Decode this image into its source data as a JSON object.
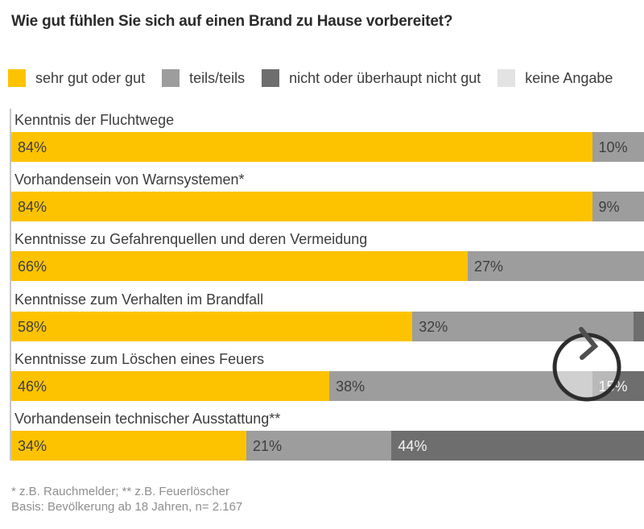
{
  "title": "Wie gut fühlen Sie sich auf einen Brand zu Hause vorbereitet?",
  "legend": {
    "items": [
      {
        "label": "sehr gut oder gut",
        "color": "#fdc300"
      },
      {
        "label": "teils/teils",
        "color": "#9d9d9d"
      },
      {
        "label": "nicht oder überhaupt nicht gut",
        "color": "#6e6e6e"
      },
      {
        "label": "keine Angabe",
        "color": "#e3e3e3"
      }
    ]
  },
  "chart_data": {
    "type": "bar",
    "stacked": true,
    "orientation": "horizontal",
    "unit": "%",
    "title": "Wie gut fühlen Sie sich auf einen Brand zu Hause vorbereitet?",
    "axis_note": "bars clipped at right image edge; baseline axis at left = 0%",
    "categories": [
      "Kenntnis der Fluchtwege",
      "Vorhandensein von Warnsystemen*",
      "Kenntnisse zu Gefahrenquellen und deren Vermeidung",
      "Kenntnisse zum Verhalten im Brandfall",
      "Kenntnisse zum Löschen eines Feuers",
      "Vorhandensein technischer Ausstattung**"
    ],
    "series": [
      {
        "name": "sehr gut oder gut",
        "color": "#fdc300",
        "value_text_color": "#3e3e3e",
        "values": [
          84,
          84,
          66,
          58,
          46,
          34
        ]
      },
      {
        "name": "teils/teils",
        "color": "#9d9d9d",
        "value_text_color": "#3e3e3e",
        "values": [
          10,
          9,
          27,
          32,
          38,
          21
        ]
      },
      {
        "name": "nicht oder überhaupt nicht gut",
        "color": "#6e6e6e",
        "value_text_color": "#f5f5f5",
        "values": [
          null,
          null,
          null,
          null,
          15,
          44
        ]
      },
      {
        "name": "keine Angabe",
        "color": "#e3e3e3",
        "value_text_color": "#3e3e3e",
        "values": [
          null,
          null,
          null,
          null,
          null,
          null
        ]
      }
    ],
    "rows": [
      {
        "label": "Kenntnis der Fluchtwege",
        "segments": [
          {
            "series": 0,
            "value": 84,
            "text": "84%"
          },
          {
            "series": 1,
            "value": 10,
            "text": "10%"
          }
        ]
      },
      {
        "label": "Vorhandensein von Warnsystemen*",
        "segments": [
          {
            "series": 0,
            "value": 84,
            "text": "84%"
          },
          {
            "series": 1,
            "value": 9,
            "text": "9%"
          }
        ]
      },
      {
        "label": "Kenntnisse zu Gefahrenquellen und deren Vermeidung",
        "segments": [
          {
            "series": 0,
            "value": 66,
            "text": "66%"
          },
          {
            "series": 1,
            "value": 27,
            "text": "27%"
          }
        ]
      },
      {
        "label": "Kenntnisse zum Verhalten im Brandfall",
        "segments": [
          {
            "series": 0,
            "value": 58,
            "text": "58%"
          },
          {
            "series": 1,
            "value": 32,
            "text": "32%"
          },
          {
            "series": 2,
            "value": null,
            "text": ""
          }
        ]
      },
      {
        "label": "Kenntnisse zum Löschen eines Feuers",
        "segments": [
          {
            "series": 0,
            "value": 46,
            "text": "46%"
          },
          {
            "series": 1,
            "value": 38,
            "text": "38%"
          },
          {
            "series": 2,
            "value": 15,
            "text": "15%"
          }
        ]
      },
      {
        "label": "Vorhandensein technischer Ausstattung**",
        "segments": [
          {
            "series": 0,
            "value": 34,
            "text": "34%"
          },
          {
            "series": 1,
            "value": 21,
            "text": "21%"
          },
          {
            "series": 2,
            "value": 44,
            "text": "44%"
          }
        ]
      }
    ]
  },
  "footer": {
    "line1": "* z.B. Rauchmelder; ** z.B. Feuerlöscher",
    "line2": "Basis: Bevölkerung ab 18 Jahren, n= 2.167"
  },
  "overlay": {
    "icon": "clock-chevron-circle",
    "circle_color": "#2d2d2d",
    "chevron_color": "#4e4e4e",
    "fill": "rgba(255,255,255,0.52)"
  },
  "colors": {
    "background": "#ffffff",
    "title_text": "#2b2b2b",
    "label_text": "#3c3c3c",
    "axis_line": "#c6c6c6",
    "footer_text": "#8f8f8f"
  }
}
